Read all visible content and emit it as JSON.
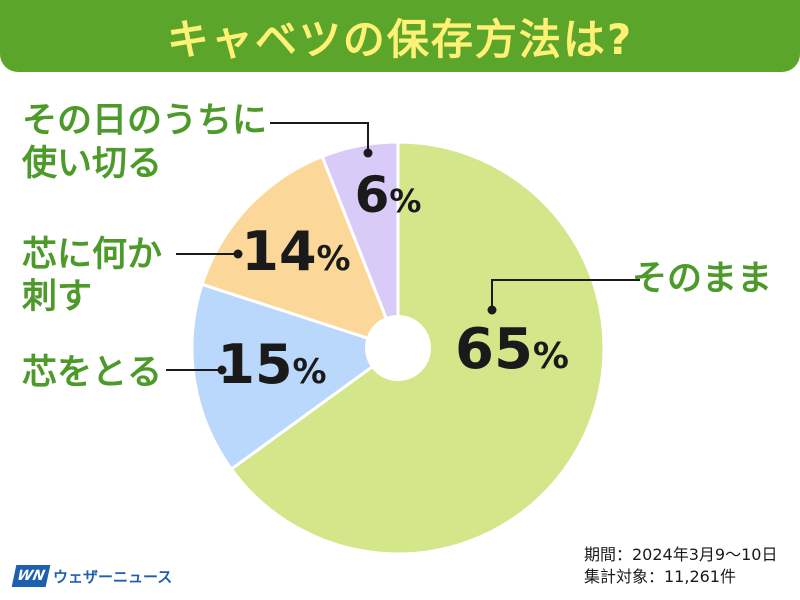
{
  "title": "キャベツの保存方法は?",
  "chart_data": {
    "type": "pie",
    "title": "キャベツの保存方法は?",
    "slices": [
      {
        "label": "そのまま",
        "value": 65,
        "value_label": "65",
        "color": "#d4e68a"
      },
      {
        "label": "芯をとる",
        "value": 15,
        "value_label": "15",
        "color": "#b9d8fb"
      },
      {
        "label": "芯に何か刺す",
        "value": 14,
        "value_label": "14",
        "color": "#fbd89a"
      },
      {
        "label": "その日のうちに使い切る",
        "value": 6,
        "value_label": "6",
        "color": "#d9cbf7"
      }
    ],
    "unit": "%",
    "label_lines": {
      "sonomama": [
        "そのまま"
      ],
      "shin_toru": [
        "芯をとる"
      ],
      "shin_sasu": [
        "芯に何か",
        "刺す"
      ],
      "tsukaikiru": [
        "その日のうちに",
        "使い切る"
      ]
    }
  },
  "footer": {
    "period": "期間：2024年3月9〜10日",
    "count": "集計対象：11,261件"
  },
  "logo": {
    "mark": "WN",
    "text": "ウェザーニュース"
  }
}
